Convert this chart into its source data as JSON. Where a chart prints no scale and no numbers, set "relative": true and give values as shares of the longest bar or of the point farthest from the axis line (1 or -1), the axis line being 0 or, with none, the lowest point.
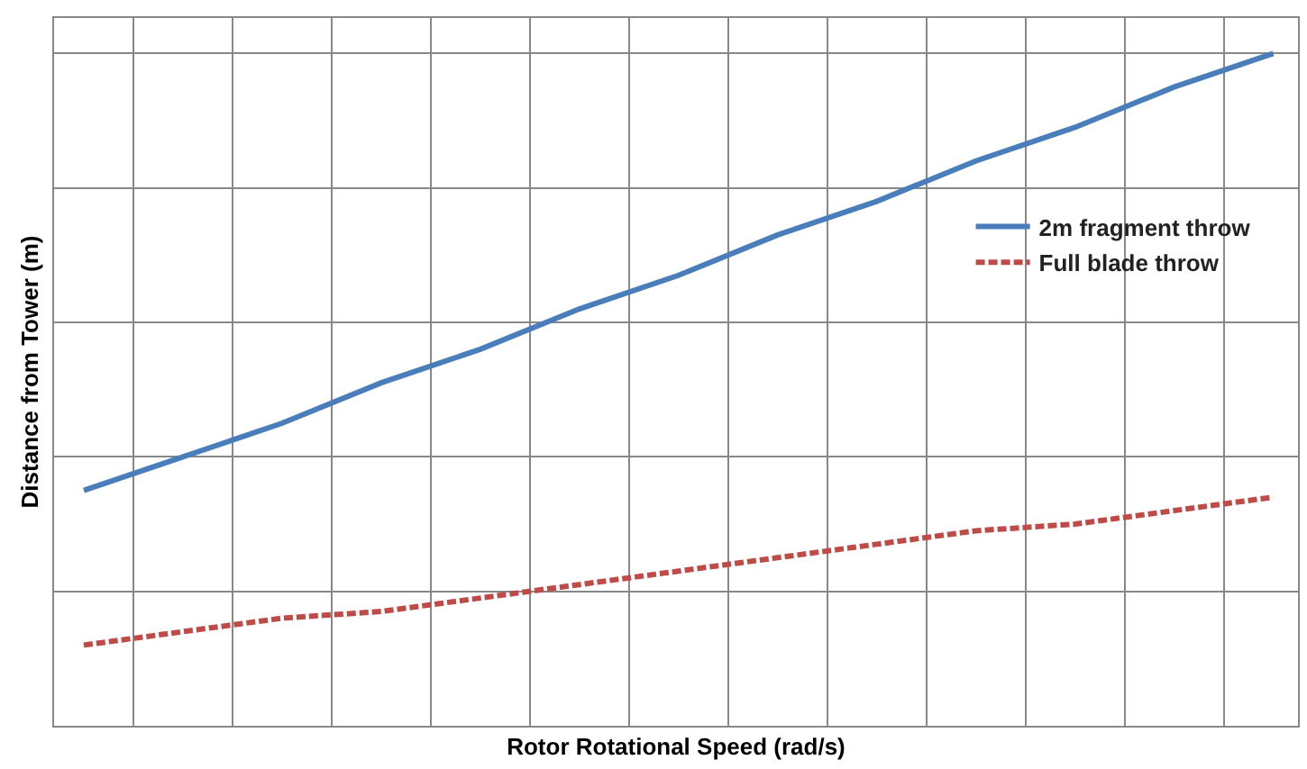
{
  "chart_data": {
    "type": "line",
    "relative": true,
    "xlabel": "Rotor Rotational Speed (rad/s)",
    "ylabel": "Distance from Tower (m)",
    "categories": [
      null,
      null,
      null,
      null,
      null,
      null,
      null,
      null,
      null,
      null,
      null,
      null,
      null
    ],
    "series": [
      {
        "name": "2m fragment throw",
        "color": "#4a7ebb",
        "line_style": "solid",
        "values": [
          0.35,
          0.4,
          0.45,
          0.51,
          0.56,
          0.62,
          0.67,
          0.73,
          0.78,
          0.84,
          0.89,
          0.95,
          1
        ]
      },
      {
        "name": "Full blade throw",
        "color": "#be4b48",
        "line_style": "dashed",
        "values": [
          0.12,
          0.14,
          0.16,
          0.17,
          0.19,
          0.21,
          0.23,
          0.25,
          0.27,
          0.29,
          0.3,
          0.32,
          0.34
        ]
      }
    ],
    "grid": true,
    "legend": "right",
    "marker": "none"
  }
}
